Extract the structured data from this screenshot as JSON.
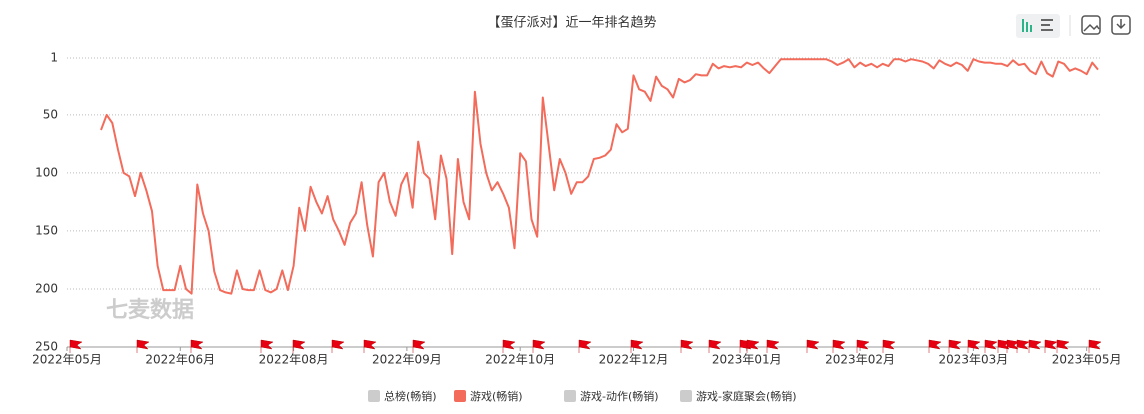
{
  "chart_data": {
    "type": "line",
    "title": "【蛋仔派对】近一年排名趋势",
    "watermark": "七麦数据",
    "categories": [
      "2022年05月",
      null,
      null,
      null,
      null,
      null,
      null,
      null,
      null,
      null,
      null,
      null,
      null,
      null,
      null,
      null,
      null,
      null,
      null,
      null,
      "2022年06月",
      null,
      null,
      null,
      null,
      null,
      null,
      null,
      null,
      null,
      null,
      null,
      null,
      null,
      null,
      null,
      null,
      null,
      null,
      null,
      "2022年08月",
      null,
      null,
      null,
      null,
      null,
      null,
      null,
      null,
      null,
      null,
      null,
      null,
      null,
      null,
      null,
      null,
      null,
      null,
      null,
      "2022年09月",
      null,
      null,
      null,
      null,
      null,
      null,
      null,
      null,
      null,
      null,
      null,
      null,
      null,
      null,
      null,
      null,
      null,
      null,
      null,
      "2022年10月",
      null,
      null,
      null,
      null,
      null,
      null,
      null,
      null,
      null,
      null,
      null,
      null,
      null,
      null,
      null,
      null,
      null,
      null,
      null,
      "2022年12月",
      null,
      null,
      null,
      null,
      null,
      null,
      null,
      null,
      null,
      null,
      null,
      null,
      null,
      null,
      null,
      null,
      null,
      null,
      null,
      "2023年01月",
      null,
      null,
      null,
      null,
      null,
      null,
      null,
      null,
      null,
      null,
      null,
      null,
      null,
      null,
      null,
      null,
      null,
      null,
      null,
      "2023年02月",
      null,
      null,
      null,
      null,
      null,
      null,
      null,
      null,
      null,
      null,
      null,
      null,
      null,
      null,
      null,
      null,
      null,
      null,
      null,
      "2023年03月",
      null,
      null,
      null,
      null,
      null,
      null,
      null,
      null,
      null,
      null,
      null,
      null,
      null,
      null,
      null,
      null,
      null,
      null,
      null,
      "2023年05月",
      null,
      null
    ],
    "series": [
      {
        "name": "总榜(畅销)",
        "color": "#cccccc",
        "visible": false
      },
      {
        "name": "游戏(畅销)",
        "color": "#f26b5b",
        "visible": true,
        "values": [
          null,
          null,
          null,
          null,
          null,
          null,
          63,
          50,
          57,
          80,
          100,
          103,
          120,
          100,
          115,
          133,
          180,
          201,
          201,
          201,
          180,
          200,
          204,
          110,
          135,
          150,
          185,
          201,
          203,
          204,
          184,
          200,
          201,
          201,
          184,
          201,
          203,
          200,
          184,
          201,
          180,
          130,
          150,
          112,
          125,
          135,
          120,
          140,
          150,
          162,
          143,
          135,
          108,
          145,
          172,
          108,
          100,
          125,
          137,
          110,
          100,
          130,
          73,
          100,
          105,
          140,
          85,
          105,
          170,
          88,
          125,
          140,
          30,
          75,
          100,
          115,
          108,
          118,
          130,
          165,
          83,
          90,
          140,
          155,
          35,
          75,
          115,
          88,
          100,
          118,
          108,
          108,
          103,
          88,
          87,
          85,
          80,
          58,
          65,
          62,
          16,
          28,
          30,
          38,
          17,
          25,
          28,
          35,
          19,
          22,
          20,
          15,
          16,
          16,
          6,
          10,
          8,
          9,
          8,
          9,
          5,
          7,
          5,
          10,
          14,
          8,
          2,
          2,
          2,
          2,
          2,
          2,
          2,
          2,
          2,
          4,
          7,
          5,
          2,
          9,
          5,
          8,
          6,
          9,
          6,
          8,
          2,
          2,
          4,
          2,
          3,
          4,
          6,
          10,
          3,
          6,
          8,
          5,
          7,
          12,
          2,
          4,
          5,
          5,
          6,
          6,
          8,
          3,
          7,
          6,
          12,
          15,
          4,
          14,
          17,
          4,
          6,
          12,
          10,
          12,
          15,
          5,
          11
        ]
      },
      {
        "name": "游戏-动作(畅销)",
        "color": "#cccccc",
        "visible": false
      },
      {
        "name": "游戏-家庭聚会(畅销)",
        "color": "#cccccc",
        "visible": false
      }
    ],
    "ylim": [
      250,
      1
    ],
    "yticks": [
      1,
      50,
      100,
      150,
      200,
      250
    ],
    "grid": true
  }
}
